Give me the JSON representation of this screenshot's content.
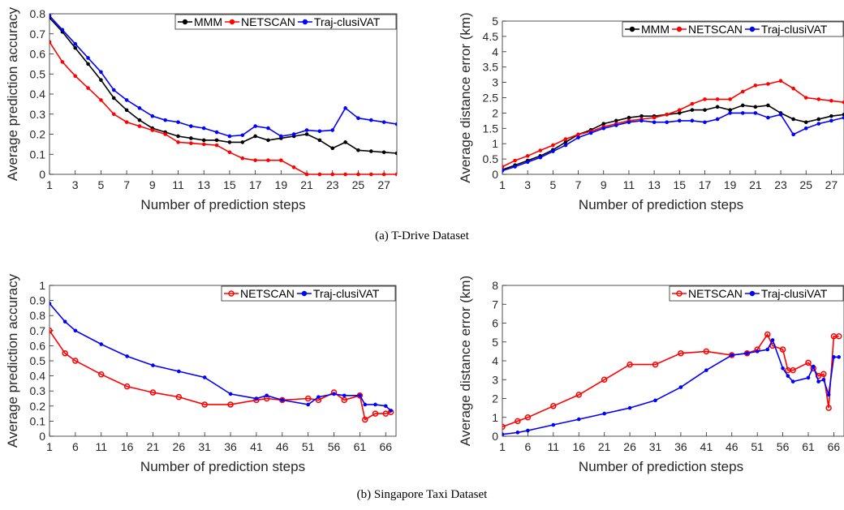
{
  "captions": {
    "a": "(a) T-Drive Dataset",
    "b": "(b) Singapore Taxi Dataset"
  },
  "chart_data": [
    {
      "id": "tdrive-accuracy",
      "type": "line",
      "xlabel": "Number of prediction steps",
      "ylabel": "Average prediction accuracy",
      "xlim": [
        1,
        28
      ],
      "ylim": [
        0,
        0.8
      ],
      "xticks": [
        1,
        3,
        5,
        7,
        9,
        11,
        13,
        15,
        17,
        19,
        21,
        23,
        25,
        27
      ],
      "yticks": [
        0,
        0.1,
        0.2,
        0.3,
        0.4,
        0.5,
        0.6,
        0.7,
        0.8
      ],
      "legend_position": "top-right",
      "x": [
        1,
        2,
        3,
        4,
        5,
        6,
        7,
        8,
        9,
        10,
        11,
        12,
        13,
        14,
        15,
        16,
        17,
        18,
        19,
        20,
        21,
        22,
        23,
        24,
        25,
        26,
        27,
        28
      ],
      "series": [
        {
          "name": "MMM",
          "color": "#000000",
          "marker": "dot",
          "values": [
            0.78,
            0.71,
            0.63,
            0.55,
            0.47,
            0.38,
            0.32,
            0.27,
            0.23,
            0.21,
            0.19,
            0.18,
            0.17,
            0.17,
            0.16,
            0.16,
            0.19,
            0.17,
            0.18,
            0.19,
            0.2,
            0.17,
            0.13,
            0.16,
            0.12,
            0.115,
            0.11,
            0.105
          ]
        },
        {
          "name": "NETSCAN",
          "color": "#ff0000",
          "marker": "dot",
          "values": [
            0.66,
            0.56,
            0.49,
            0.43,
            0.37,
            0.3,
            0.26,
            0.24,
            0.22,
            0.2,
            0.16,
            0.155,
            0.15,
            0.145,
            0.11,
            0.08,
            0.07,
            0.07,
            0.07,
            0.035,
            0,
            0,
            0,
            0,
            0,
            0,
            0,
            0
          ]
        },
        {
          "name": "Traj-clusiVAT",
          "color": "#0000ff",
          "marker": "dot",
          "values": [
            0.79,
            0.72,
            0.65,
            0.58,
            0.51,
            0.42,
            0.37,
            0.33,
            0.29,
            0.27,
            0.26,
            0.24,
            0.23,
            0.21,
            0.19,
            0.195,
            0.24,
            0.23,
            0.19,
            0.2,
            0.22,
            0.215,
            0.22,
            0.33,
            0.28,
            0.27,
            0.26,
            0.25
          ]
        }
      ]
    },
    {
      "id": "tdrive-distance",
      "type": "line",
      "xlabel": "Number of prediction steps",
      "ylabel": "Average distance error (km)",
      "xlim": [
        1,
        28
      ],
      "ylim": [
        0,
        5
      ],
      "xticks": [
        1,
        3,
        5,
        7,
        9,
        11,
        13,
        15,
        17,
        19,
        21,
        23,
        25,
        27
      ],
      "yticks": [
        0,
        0.5,
        1,
        1.5,
        2,
        2.5,
        3,
        3.5,
        4,
        4.5,
        5
      ],
      "legend_position": "top-right",
      "x": [
        1,
        2,
        3,
        4,
        5,
        6,
        7,
        8,
        9,
        10,
        11,
        12,
        13,
        14,
        15,
        16,
        17,
        18,
        19,
        20,
        21,
        22,
        23,
        24,
        25,
        26,
        27,
        28
      ],
      "series": [
        {
          "name": "MMM",
          "color": "#000000",
          "marker": "dot",
          "values": [
            0.15,
            0.3,
            0.45,
            0.6,
            0.8,
            1.05,
            1.3,
            1.45,
            1.65,
            1.75,
            1.85,
            1.9,
            1.9,
            1.95,
            2.0,
            2.1,
            2.1,
            2.2,
            2.1,
            2.25,
            2.2,
            2.25,
            2.0,
            1.8,
            1.7,
            1.8,
            1.9,
            1.95
          ]
        },
        {
          "name": "NETSCAN",
          "color": "#ff0000",
          "marker": "dot",
          "values": [
            0.25,
            0.45,
            0.6,
            0.78,
            0.95,
            1.15,
            1.3,
            1.4,
            1.55,
            1.65,
            1.75,
            1.8,
            1.85,
            1.95,
            2.1,
            2.3,
            2.45,
            2.45,
            2.45,
            2.7,
            2.9,
            2.95,
            3.05,
            2.8,
            2.5,
            2.45,
            2.4,
            2.35
          ]
        },
        {
          "name": "Traj-clusiVAT",
          "color": "#0000ff",
          "marker": "dot",
          "values": [
            0.12,
            0.25,
            0.4,
            0.55,
            0.75,
            0.95,
            1.2,
            1.35,
            1.5,
            1.6,
            1.7,
            1.75,
            1.7,
            1.7,
            1.75,
            1.75,
            1.7,
            1.8,
            2.0,
            2.0,
            2.0,
            1.85,
            1.95,
            1.3,
            1.5,
            1.65,
            1.75,
            1.85
          ]
        }
      ]
    },
    {
      "id": "singapore-accuracy",
      "type": "line",
      "xlabel": "Number of prediction steps",
      "ylabel": "Average prediction accuracy",
      "xlim": [
        1,
        68
      ],
      "ylim": [
        0,
        1
      ],
      "xticks": [
        1,
        6,
        11,
        16,
        21,
        26,
        31,
        36,
        41,
        46,
        51,
        56,
        61,
        66
      ],
      "yticks": [
        0,
        0.1,
        0.2,
        0.3,
        0.4,
        0.5,
        0.6,
        0.7,
        0.8,
        0.9,
        1
      ],
      "legend_position": "top-right",
      "x": [
        1,
        4,
        6,
        11,
        16,
        21,
        26,
        31,
        36,
        41,
        43,
        46,
        51,
        53,
        56,
        58,
        61,
        62,
        64,
        66,
        67
      ],
      "series": [
        {
          "name": "NETSCAN",
          "color": "#ff0000",
          "marker": "circle",
          "values": [
            0.7,
            0.55,
            0.5,
            0.41,
            0.33,
            0.29,
            0.26,
            0.21,
            0.21,
            0.24,
            0.25,
            0.24,
            0.25,
            0.24,
            0.29,
            0.24,
            0.27,
            0.11,
            0.15,
            0.15,
            0.16
          ]
        },
        {
          "name": "Traj-clusiVAT",
          "color": "#0000ff",
          "marker": "dot",
          "values": [
            0.88,
            0.76,
            0.7,
            0.61,
            0.53,
            0.47,
            0.43,
            0.39,
            0.28,
            0.25,
            0.27,
            0.24,
            0.21,
            0.26,
            0.28,
            0.27,
            0.27,
            0.21,
            0.21,
            0.2,
            0.17
          ]
        }
      ]
    },
    {
      "id": "singapore-distance",
      "type": "line",
      "xlabel": "Number of prediction steps",
      "ylabel": "Average distance error (km)",
      "xlim": [
        1,
        68
      ],
      "ylim": [
        0,
        8
      ],
      "xticks": [
        1,
        6,
        11,
        16,
        21,
        26,
        31,
        36,
        41,
        46,
        51,
        56,
        61,
        66
      ],
      "yticks": [
        0,
        1,
        2,
        3,
        4,
        5,
        6,
        7,
        8
      ],
      "legend_position": "top-right",
      "x": [
        1,
        4,
        6,
        11,
        16,
        21,
        26,
        31,
        36,
        41,
        46,
        49,
        51,
        53,
        54,
        56,
        57,
        58,
        61,
        62,
        63,
        64,
        65,
        66,
        67
      ],
      "series": [
        {
          "name": "NETSCAN",
          "color": "#ff0000",
          "marker": "circle",
          "values": [
            0.5,
            0.8,
            1.0,
            1.6,
            2.2,
            3.0,
            3.8,
            3.8,
            4.4,
            4.5,
            4.3,
            4.4,
            4.6,
            5.4,
            4.8,
            4.6,
            3.5,
            3.5,
            3.9,
            3.6,
            3.2,
            3.3,
            1.5,
            5.3,
            5.3
          ]
        },
        {
          "name": "Traj-clusiVAT",
          "color": "#0000ff",
          "marker": "dot",
          "values": [
            0.1,
            0.2,
            0.3,
            0.6,
            0.9,
            1.2,
            1.5,
            1.9,
            2.6,
            3.5,
            4.3,
            4.4,
            4.5,
            4.6,
            5.1,
            3.6,
            3.2,
            2.9,
            3.1,
            3.7,
            2.9,
            3.0,
            2.2,
            4.2,
            4.2
          ]
        }
      ]
    }
  ]
}
